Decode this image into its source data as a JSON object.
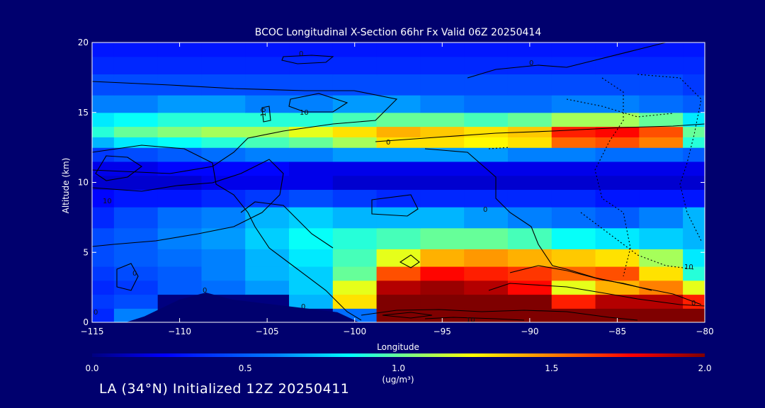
{
  "chart_data": {
    "type": "heatmap",
    "title": "BCOC Longitudinal X-Section 66hr  Fx Valid 06Z 20250414",
    "xlabel": "Longitude",
    "ylabel": "Altitude (km)",
    "xlim": [
      -115,
      -80
    ],
    "ylim": [
      0,
      20
    ],
    "xticks": [
      -115,
      -110,
      -105,
      -100,
      -95,
      -90,
      -85,
      -80
    ],
    "xtick_labels": [
      "−115",
      "−110",
      "−105",
      "−100",
      "−95",
      "−90",
      "−85",
      "−80"
    ],
    "yticks": [
      0,
      5,
      10,
      15,
      20
    ],
    "ytick_labels": [
      "0",
      "5",
      "10",
      "15",
      "20"
    ],
    "colorbar": {
      "min": 0.0,
      "max": 2.0,
      "ticks": [
        "0.0",
        "0.5",
        "1.0",
        "1.5",
        "2.0"
      ],
      "unit": "(ug/m³)",
      "colors": [
        "#00007f",
        "#0000ff",
        "#0080ff",
        "#00ffff",
        "#80ff80",
        "#ffff00",
        "#ff8000",
        "#ff0000",
        "#7f0000"
      ]
    },
    "contour_labels": [
      "0",
      "10",
      "10",
      "0",
      "0",
      "10",
      "0",
      "0",
      "0",
      "0",
      "0",
      "10",
      "10",
      "0"
    ],
    "x": [
      -115,
      -112.5,
      -110,
      -107.5,
      -105,
      -102.5,
      -100,
      -97.5,
      -95,
      -92.5,
      -90,
      -87.5,
      -85,
      -82.5,
      -80
    ],
    "y": [
      0.5,
      1.5,
      2.5,
      3.5,
      4.5,
      6,
      7.5,
      9,
      10,
      11,
      12,
      13,
      13.5,
      14.5,
      15.5,
      17,
      18.5,
      19.5
    ],
    "z": [
      [
        0.35,
        0.6,
        0.0,
        0.0,
        0.0,
        0.0,
        0.55,
        2.0,
        2.0,
        2.0,
        2.0,
        2.0,
        2.0,
        2.0,
        2.0
      ],
      [
        0.4,
        0.45,
        0.0,
        0.0,
        0.0,
        0.7,
        1.3,
        2.0,
        2.0,
        2.0,
        2.0,
        1.7,
        1.9,
        1.9,
        1.7
      ],
      [
        0.35,
        0.4,
        0.5,
        0.55,
        0.65,
        0.75,
        1.2,
        1.9,
        1.95,
        1.9,
        1.75,
        1.2,
        1.4,
        1.5,
        1.2
      ],
      [
        0.4,
        0.45,
        0.5,
        0.6,
        0.7,
        0.75,
        1.0,
        1.6,
        1.75,
        1.7,
        1.65,
        1.55,
        1.6,
        1.3,
        0.9
      ],
      [
        0.45,
        0.5,
        0.55,
        0.6,
        0.7,
        0.8,
        0.95,
        1.2,
        1.4,
        1.45,
        1.4,
        1.35,
        1.3,
        1.1,
        0.8
      ],
      [
        0.45,
        0.5,
        0.6,
        0.65,
        0.75,
        0.85,
        0.9,
        0.95,
        1.0,
        1.0,
        0.95,
        0.85,
        0.8,
        0.75,
        0.7
      ],
      [
        0.35,
        0.45,
        0.55,
        0.6,
        0.7,
        0.75,
        0.7,
        0.7,
        0.7,
        0.65,
        0.6,
        0.55,
        0.5,
        0.6,
        0.7
      ],
      [
        0.25,
        0.3,
        0.3,
        0.35,
        0.4,
        0.45,
        0.4,
        0.35,
        0.35,
        0.35,
        0.35,
        0.35,
        0.3,
        0.3,
        0.3
      ],
      [
        0.15,
        0.15,
        0.15,
        0.2,
        0.2,
        0.2,
        0.15,
        0.15,
        0.15,
        0.15,
        0.15,
        0.15,
        0.15,
        0.15,
        0.15
      ],
      [
        0.2,
        0.2,
        0.25,
        0.25,
        0.25,
        0.2,
        0.2,
        0.2,
        0.2,
        0.2,
        0.2,
        0.2,
        0.2,
        0.2,
        0.2
      ],
      [
        0.4,
        0.45,
        0.5,
        0.55,
        0.6,
        0.6,
        0.65,
        0.65,
        0.65,
        0.65,
        0.6,
        0.6,
        0.55,
        0.55,
        0.5
      ],
      [
        0.7,
        0.8,
        0.85,
        0.9,
        0.95,
        1.0,
        1.1,
        1.3,
        1.3,
        1.25,
        1.3,
        1.55,
        1.6,
        1.5,
        0.9
      ],
      [
        0.9,
        1.0,
        1.05,
        1.1,
        1.1,
        1.2,
        1.3,
        1.4,
        1.35,
        1.3,
        1.35,
        1.7,
        1.75,
        1.6,
        1.0
      ],
      [
        0.8,
        0.85,
        0.9,
        0.9,
        0.9,
        0.9,
        0.95,
        1.0,
        1.0,
        0.95,
        1.0,
        1.1,
        1.1,
        1.0,
        0.8
      ],
      [
        0.6,
        0.6,
        0.65,
        0.65,
        0.6,
        0.6,
        0.65,
        0.65,
        0.6,
        0.55,
        0.55,
        0.6,
        0.6,
        0.55,
        0.5
      ],
      [
        0.45,
        0.45,
        0.45,
        0.45,
        0.45,
        0.45,
        0.45,
        0.45,
        0.45,
        0.45,
        0.45,
        0.45,
        0.45,
        0.45,
        0.4
      ],
      [
        0.35,
        0.35,
        0.35,
        0.35,
        0.35,
        0.35,
        0.35,
        0.35,
        0.35,
        0.35,
        0.35,
        0.35,
        0.35,
        0.35,
        0.35
      ],
      [
        0.3,
        0.3,
        0.3,
        0.3,
        0.3,
        0.3,
        0.3,
        0.3,
        0.3,
        0.3,
        0.3,
        0.3,
        0.3,
        0.3,
        0.3
      ]
    ],
    "terrain": {
      "x": [
        -115,
        -113,
        -112,
        -110,
        -108.5,
        -107,
        -105,
        -103,
        -101,
        -99.8
      ],
      "y": [
        0,
        0,
        0.4,
        1.6,
        2.1,
        1.6,
        1.3,
        1.0,
        0.7,
        0
      ]
    }
  },
  "footer": {
    "text": "LA (34°N) Initialized 12Z 20250411"
  }
}
